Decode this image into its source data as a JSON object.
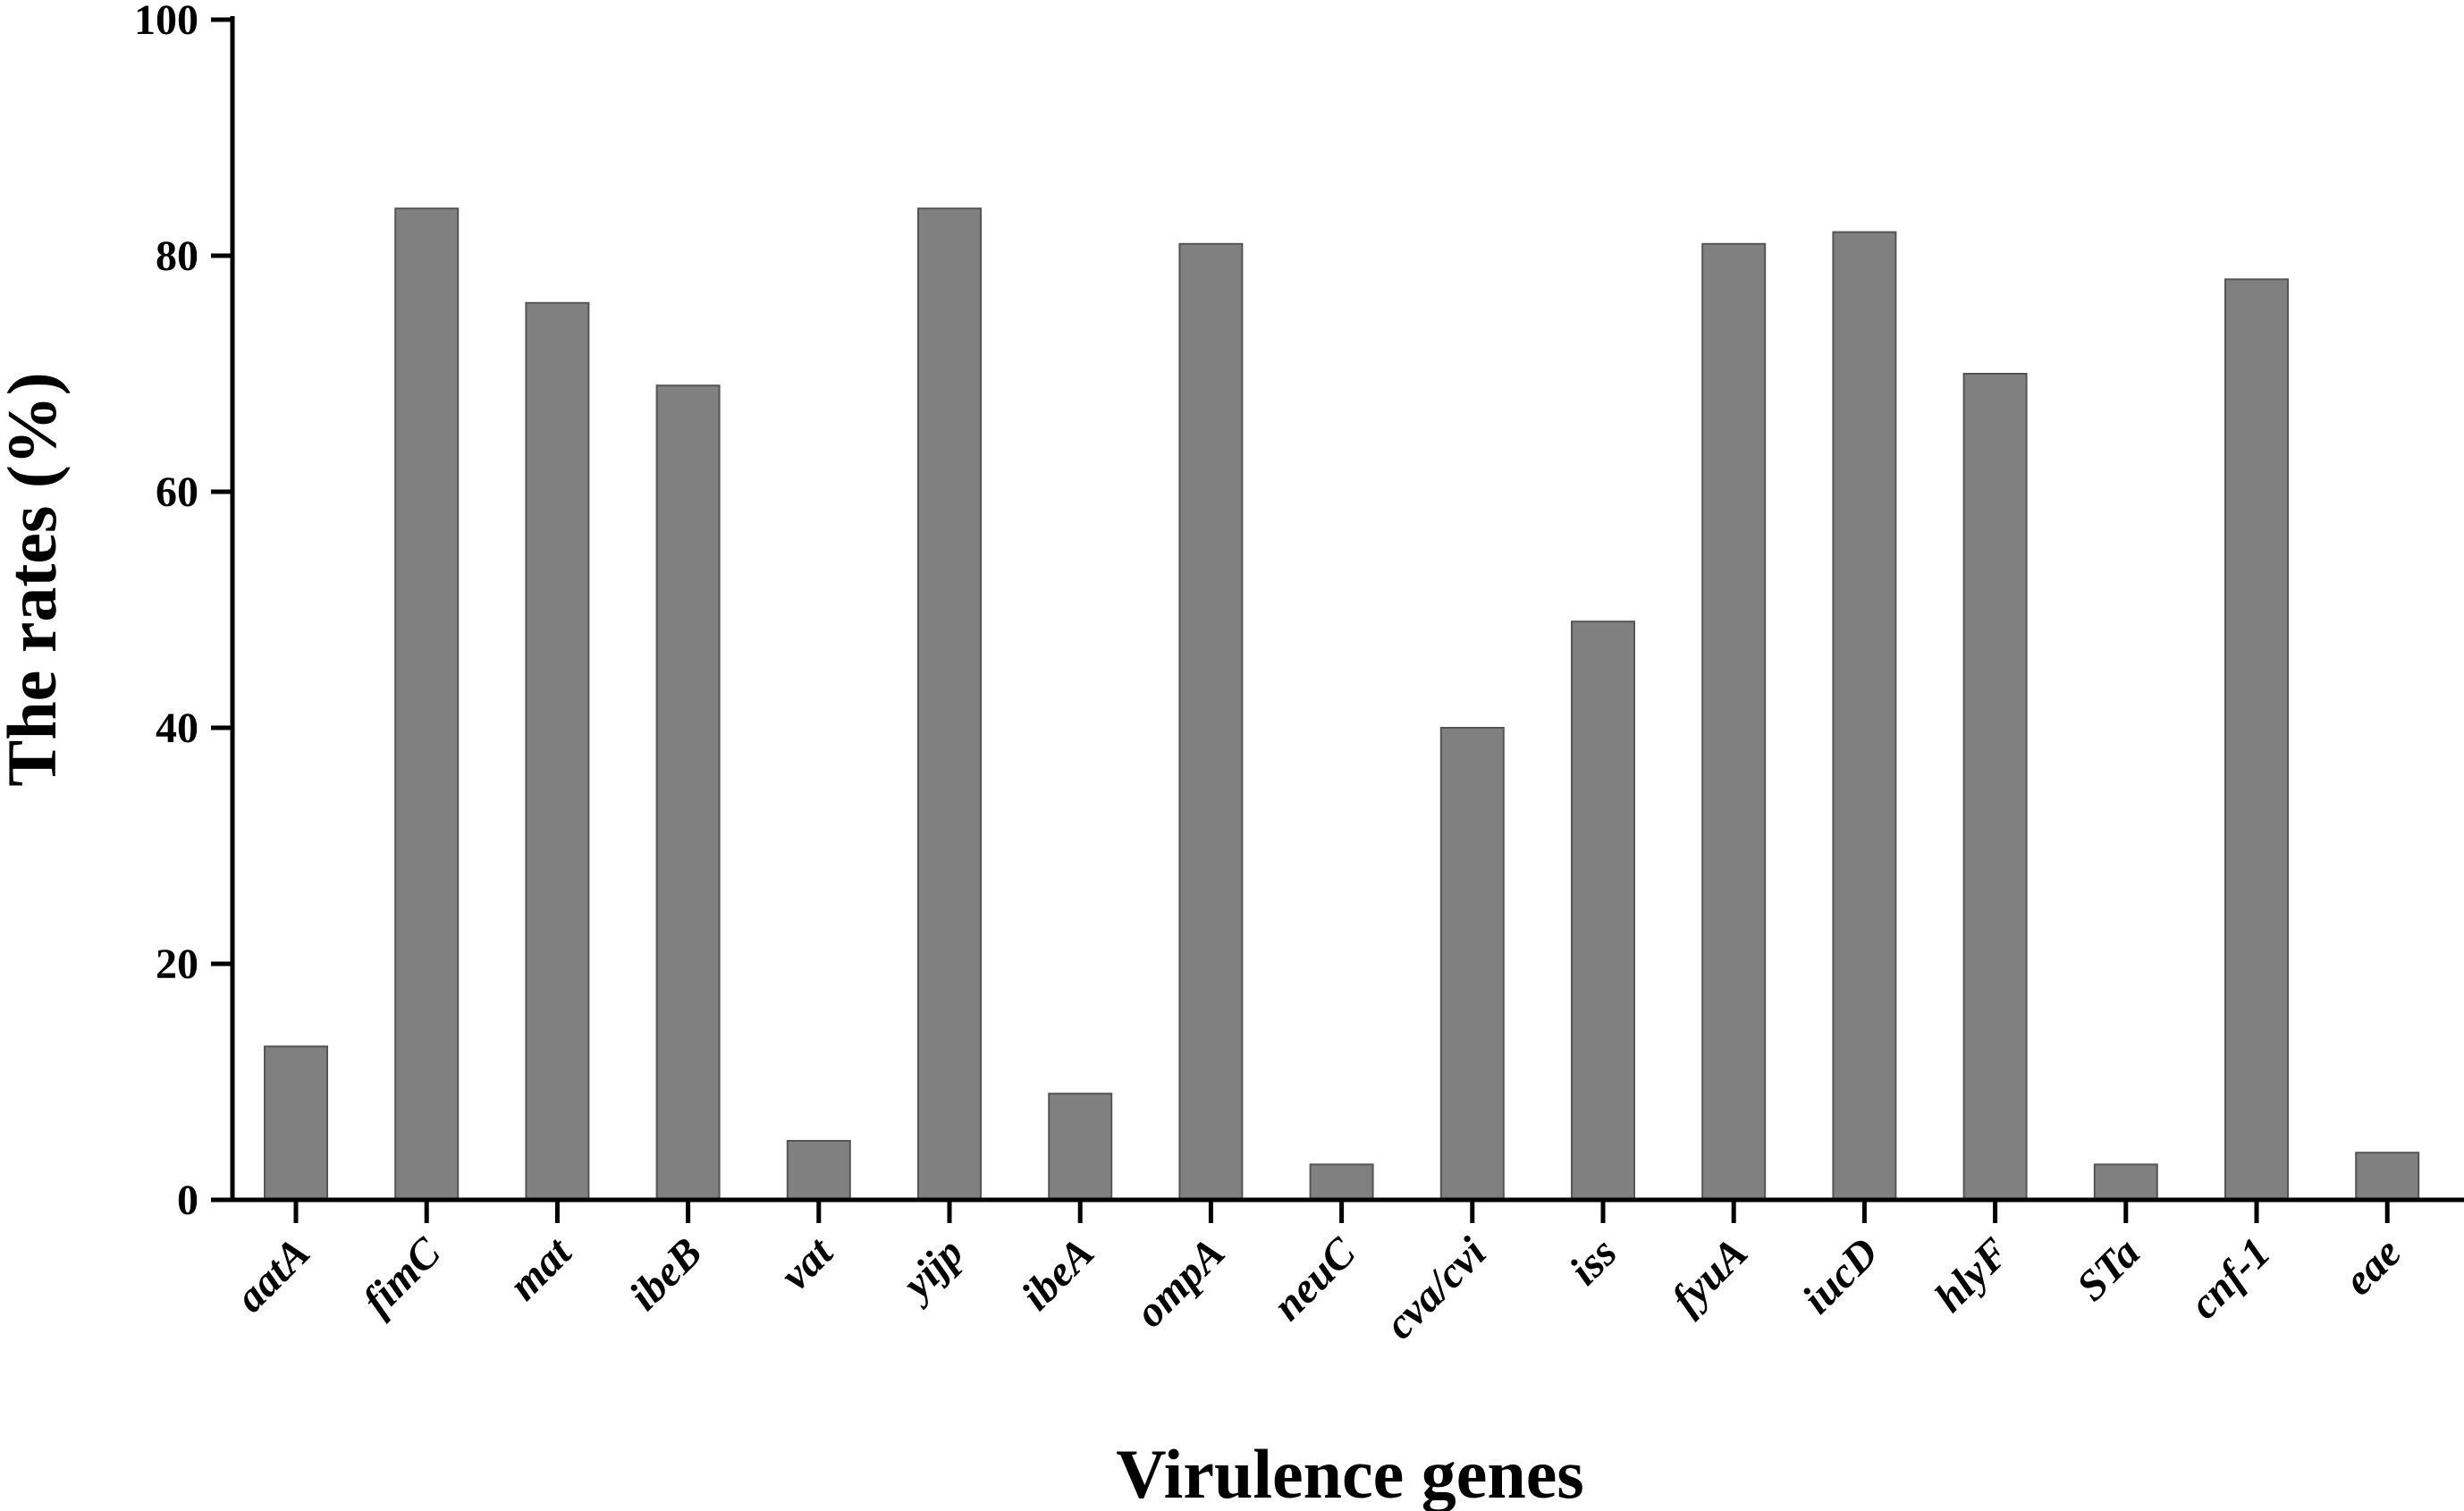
{
  "chart_data": {
    "type": "bar",
    "title": "",
    "xlabel": "Virulence genes",
    "ylabel": "The rates (%)",
    "ylim": [
      0,
      100
    ],
    "yticks": [
      0,
      20,
      40,
      60,
      80,
      100
    ],
    "grid": false,
    "legend": "none",
    "categories": [
      "aatA",
      "fimC",
      "mat",
      "ibeB",
      "vat",
      "yijp",
      "ibeA",
      "ompA",
      "neuC",
      "cva/cvi",
      "iss",
      "fyuA",
      "iucD",
      "hlyF",
      "STa",
      "cnf-1",
      "eae"
    ],
    "values": [
      13,
      84,
      76,
      69,
      5,
      84,
      9,
      81,
      3,
      40,
      49,
      81,
      82,
      70,
      3,
      78,
      4
    ],
    "colors": {
      "bar_fill": "#808080",
      "bar_stroke": "#555555",
      "axis": "#000000"
    }
  }
}
